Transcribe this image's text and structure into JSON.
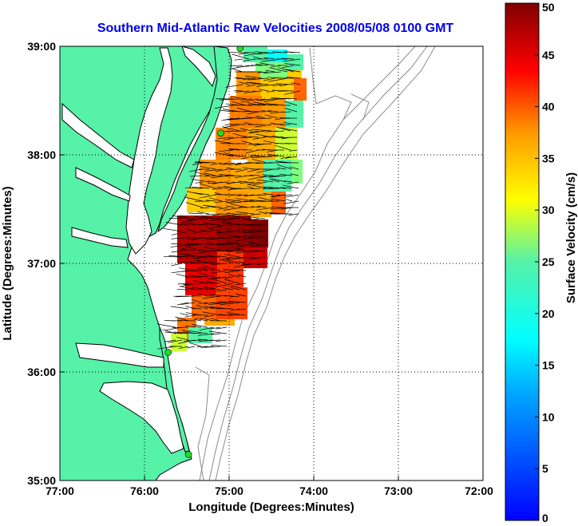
{
  "title": "Southern Mid-Atlantic Raw Velocities 2008/05/08 0100 GMT",
  "xlabel": "Longitude (Degrees:Minutes)",
  "ylabel": "Latitude (Degrees:Minutes)",
  "colorbar": {
    "label": "Surface Velocity (cm/s)",
    "min": 0,
    "max": 50,
    "ticks": [
      "0",
      "5",
      "10",
      "15",
      "20",
      "25",
      "30",
      "35",
      "40",
      "45",
      "50"
    ]
  },
  "axes": {
    "x_ticks": [
      "77:00",
      "76:00",
      "75:00",
      "74:00",
      "73:00",
      "72:00"
    ],
    "y_ticks": [
      "39:00",
      "38:00",
      "37:00",
      "36:00",
      "35:00"
    ],
    "xlim": [
      -77,
      -72
    ],
    "ylim": [
      35,
      39
    ],
    "grid": true
  },
  "colors": {
    "title": "#0000ee",
    "land": "#55f2a8",
    "coast": "#000000",
    "bathymetry": "#8c8c8c",
    "station": "#22dd22"
  },
  "stations": [
    {
      "lon": -74.87,
      "lat": 38.98
    },
    {
      "lon": -75.1,
      "lat": 38.2
    },
    {
      "lon": -75.72,
      "lat": 36.18
    },
    {
      "lon": -75.48,
      "lat": 35.24
    }
  ]
}
